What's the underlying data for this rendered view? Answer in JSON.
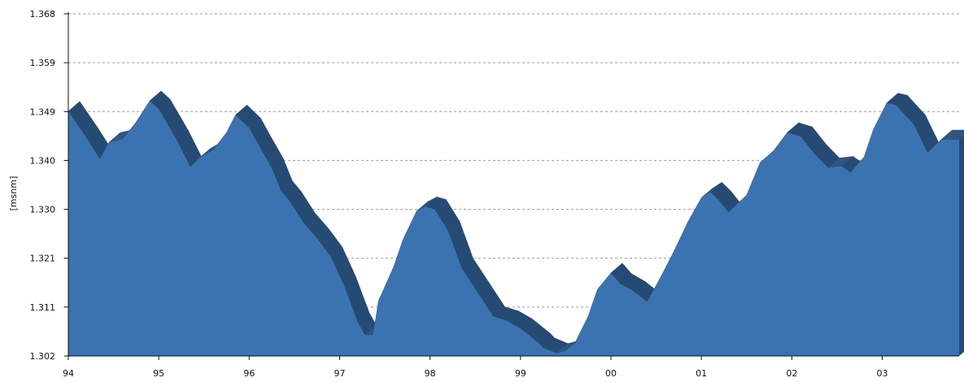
{
  "chart_data": {
    "type": "area",
    "title": "",
    "xlabel": "",
    "ylabel": "[msnm]",
    "y_ticks": [
      "1.302",
      "1.311",
      "1.321",
      "1.330",
      "1.340",
      "1.349",
      "1.359",
      "1.368"
    ],
    "x_ticks": [
      "94",
      "95",
      "96",
      "97",
      "98",
      "99",
      "00",
      "01",
      "02",
      "03"
    ],
    "ylim": [
      1.302,
      1.368
    ],
    "xlim": [
      94.0,
      103.85
    ],
    "grid": true,
    "legend": "none",
    "colors": {
      "area": "#3b73b1",
      "ridge": "#2b5685",
      "ridge_side": "#254b74",
      "grid": "#9a9a9a"
    },
    "series": [
      {
        "values": [
          {
            "x": 94.0,
            "y": 1.3492
          },
          {
            "x": 94.2,
            "y": 1.3441
          },
          {
            "x": 94.35,
            "y": 1.34
          },
          {
            "x": 94.45,
            "y": 1.3432
          },
          {
            "x": 94.6,
            "y": 1.3438
          },
          {
            "x": 94.75,
            "y": 1.3471
          },
          {
            "x": 94.9,
            "y": 1.3512
          },
          {
            "x": 95.0,
            "y": 1.3496
          },
          {
            "x": 95.2,
            "y": 1.3436
          },
          {
            "x": 95.35,
            "y": 1.3384
          },
          {
            "x": 95.45,
            "y": 1.3402
          },
          {
            "x": 95.6,
            "y": 1.3417
          },
          {
            "x": 95.75,
            "y": 1.3451
          },
          {
            "x": 95.85,
            "y": 1.3485
          },
          {
            "x": 96.0,
            "y": 1.346
          },
          {
            "x": 96.1,
            "y": 1.3428
          },
          {
            "x": 96.25,
            "y": 1.3382
          },
          {
            "x": 96.35,
            "y": 1.3339
          },
          {
            "x": 96.45,
            "y": 1.3318
          },
          {
            "x": 96.6,
            "y": 1.3277
          },
          {
            "x": 96.75,
            "y": 1.3247
          },
          {
            "x": 96.9,
            "y": 1.3212
          },
          {
            "x": 97.05,
            "y": 1.3155
          },
          {
            "x": 97.2,
            "y": 1.3085
          },
          {
            "x": 97.28,
            "y": 1.306
          },
          {
            "x": 97.37,
            "y": 1.306
          },
          {
            "x": 97.43,
            "y": 1.3126
          },
          {
            "x": 97.6,
            "y": 1.3193
          },
          {
            "x": 97.7,
            "y": 1.3244
          },
          {
            "x": 97.85,
            "y": 1.3299
          },
          {
            "x": 97.95,
            "y": 1.3308
          },
          {
            "x": 98.05,
            "y": 1.3303
          },
          {
            "x": 98.2,
            "y": 1.3261
          },
          {
            "x": 98.35,
            "y": 1.3189
          },
          {
            "x": 98.55,
            "y": 1.3136
          },
          {
            "x": 98.7,
            "y": 1.3096
          },
          {
            "x": 98.85,
            "y": 1.3088
          },
          {
            "x": 99.0,
            "y": 1.3073
          },
          {
            "x": 99.2,
            "y": 1.3045
          },
          {
            "x": 99.25,
            "y": 1.3036
          },
          {
            "x": 99.4,
            "y": 1.3025
          },
          {
            "x": 99.5,
            "y": 1.303
          },
          {
            "x": 99.6,
            "y": 1.3044
          },
          {
            "x": 99.75,
            "y": 1.3097
          },
          {
            "x": 99.85,
            "y": 1.3148
          },
          {
            "x": 100.0,
            "y": 1.318
          },
          {
            "x": 100.1,
            "y": 1.316
          },
          {
            "x": 100.25,
            "y": 1.3145
          },
          {
            "x": 100.4,
            "y": 1.3124
          },
          {
            "x": 100.55,
            "y": 1.3172
          },
          {
            "x": 100.7,
            "y": 1.3223
          },
          {
            "x": 100.85,
            "y": 1.3278
          },
          {
            "x": 101.0,
            "y": 1.3325
          },
          {
            "x": 101.1,
            "y": 1.3336
          },
          {
            "x": 101.2,
            "y": 1.3319
          },
          {
            "x": 101.3,
            "y": 1.3297
          },
          {
            "x": 101.5,
            "y": 1.333
          },
          {
            "x": 101.65,
            "y": 1.3393
          },
          {
            "x": 101.8,
            "y": 1.3416
          },
          {
            "x": 101.95,
            "y": 1.3451
          },
          {
            "x": 102.1,
            "y": 1.3443
          },
          {
            "x": 102.25,
            "y": 1.341
          },
          {
            "x": 102.4,
            "y": 1.3383
          },
          {
            "x": 102.55,
            "y": 1.3386
          },
          {
            "x": 102.65,
            "y": 1.3374
          },
          {
            "x": 102.8,
            "y": 1.3404
          },
          {
            "x": 102.9,
            "y": 1.3456
          },
          {
            "x": 103.05,
            "y": 1.3508
          },
          {
            "x": 103.15,
            "y": 1.3504
          },
          {
            "x": 103.35,
            "y": 1.3466
          },
          {
            "x": 103.5,
            "y": 1.3412
          },
          {
            "x": 103.65,
            "y": 1.3437
          },
          {
            "x": 103.85,
            "y": 1.3437
          }
        ]
      }
    ]
  }
}
